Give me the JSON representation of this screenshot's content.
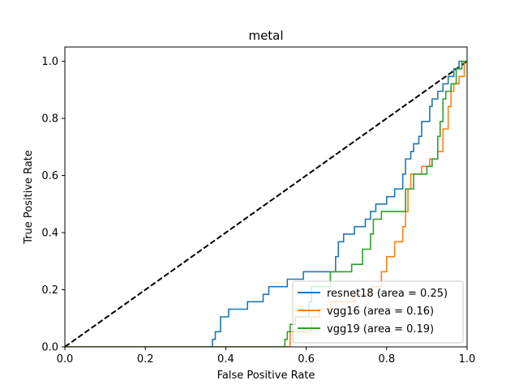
{
  "chart_data": {
    "type": "line",
    "title": "metal",
    "xlabel": "False Positive Rate",
    "ylabel": "True Positive Rate",
    "xlim": [
      0.0,
      1.0
    ],
    "ylim": [
      0.0,
      1.05
    ],
    "x_ticks": [
      "0.0",
      "0.2",
      "0.4",
      "0.6",
      "0.8",
      "1.0"
    ],
    "y_ticks": [
      "0.0",
      "0.2",
      "0.4",
      "0.6",
      "0.8",
      "1.0"
    ],
    "grid": false,
    "legend_position": "lower-right",
    "diagonal": {
      "x": [
        0,
        1
      ],
      "y": [
        0,
        1
      ],
      "style": "dashed",
      "color": "#000000"
    },
    "series": [
      {
        "name": "resnet18 (area = 0.25)",
        "color": "#1f77b4",
        "x": [
          0.0,
          0.367,
          0.367,
          0.374,
          0.374,
          0.387,
          0.387,
          0.407,
          0.407,
          0.454,
          0.454,
          0.493,
          0.493,
          0.507,
          0.507,
          0.553,
          0.553,
          0.593,
          0.593,
          0.613,
          0.613,
          0.673,
          0.673,
          0.68,
          0.68,
          0.693,
          0.693,
          0.72,
          0.72,
          0.747,
          0.747,
          0.76,
          0.76,
          0.773,
          0.773,
          0.8,
          0.8,
          0.82,
          0.82,
          0.84,
          0.84,
          0.847,
          0.847,
          0.86,
          0.86,
          0.867,
          0.867,
          0.88,
          0.88,
          0.887,
          0.887,
          0.907,
          0.907,
          0.913,
          0.913,
          0.927,
          0.927,
          0.94,
          0.94,
          0.953,
          0.953,
          0.967,
          0.967,
          0.98,
          0.98,
          0.993,
          0.993,
          1.0
        ],
        "y": [
          0.0,
          0.0,
          0.026,
          0.026,
          0.053,
          0.053,
          0.105,
          0.105,
          0.132,
          0.132,
          0.158,
          0.158,
          0.184,
          0.184,
          0.211,
          0.211,
          0.237,
          0.237,
          0.263,
          0.263,
          0.263,
          0.263,
          0.316,
          0.316,
          0.368,
          0.368,
          0.395,
          0.395,
          0.421,
          0.421,
          0.447,
          0.447,
          0.474,
          0.474,
          0.5,
          0.5,
          0.526,
          0.526,
          0.553,
          0.553,
          0.605,
          0.605,
          0.658,
          0.658,
          0.684,
          0.684,
          0.711,
          0.711,
          0.737,
          0.737,
          0.789,
          0.789,
          0.842,
          0.842,
          0.868,
          0.868,
          0.895,
          0.895,
          0.921,
          0.921,
          0.947,
          0.947,
          0.974,
          0.974,
          1.0,
          1.0,
          1.0,
          1.0
        ]
      },
      {
        "name": "vgg16 (area = 0.16)",
        "color": "#ff7f0e",
        "x": [
          0.0,
          0.56,
          0.56,
          0.613,
          0.613,
          0.633,
          0.633,
          0.66,
          0.66,
          0.72,
          0.72,
          0.76,
          0.76,
          0.787,
          0.787,
          0.8,
          0.8,
          0.82,
          0.82,
          0.84,
          0.84,
          0.847,
          0.847,
          0.853,
          0.853,
          0.86,
          0.86,
          0.887,
          0.887,
          0.907,
          0.907,
          0.927,
          0.927,
          0.94,
          0.94,
          0.953,
          0.953,
          0.96,
          0.96,
          0.967,
          0.967,
          0.98,
          0.98,
          0.993,
          0.993,
          1.0
        ],
        "y": [
          0.0,
          0.0,
          0.053,
          0.053,
          0.105,
          0.105,
          0.132,
          0.132,
          0.158,
          0.158,
          0.184,
          0.184,
          0.211,
          0.211,
          0.263,
          0.263,
          0.316,
          0.316,
          0.368,
          0.368,
          0.421,
          0.421,
          0.474,
          0.474,
          0.553,
          0.553,
          0.605,
          0.605,
          0.632,
          0.632,
          0.658,
          0.658,
          0.684,
          0.684,
          0.763,
          0.763,
          0.842,
          0.842,
          0.895,
          0.895,
          0.921,
          0.921,
          0.947,
          0.947,
          1.0,
          1.0
        ]
      },
      {
        "name": "vgg19 (area = 0.19)",
        "color": "#2ca02c",
        "x": [
          0.0,
          0.547,
          0.547,
          0.553,
          0.553,
          0.56,
          0.56,
          0.573,
          0.573,
          0.607,
          0.607,
          0.613,
          0.613,
          0.66,
          0.66,
          0.713,
          0.713,
          0.74,
          0.74,
          0.76,
          0.76,
          0.767,
          0.767,
          0.787,
          0.787,
          0.847,
          0.847,
          0.867,
          0.867,
          0.9,
          0.9,
          0.913,
          0.913,
          0.927,
          0.927,
          0.933,
          0.933,
          0.94,
          0.94,
          0.947,
          0.947,
          0.96,
          0.96,
          0.973,
          0.973,
          0.987,
          0.987,
          1.0
        ],
        "y": [
          0.0,
          0.0,
          0.026,
          0.026,
          0.053,
          0.053,
          0.079,
          0.079,
          0.105,
          0.105,
          0.158,
          0.158,
          0.211,
          0.211,
          0.263,
          0.263,
          0.289,
          0.289,
          0.342,
          0.342,
          0.395,
          0.395,
          0.447,
          0.447,
          0.474,
          0.474,
          0.553,
          0.553,
          0.605,
          0.605,
          0.632,
          0.632,
          0.658,
          0.658,
          0.737,
          0.737,
          0.789,
          0.789,
          0.868,
          0.868,
          0.895,
          0.895,
          0.921,
          0.921,
          0.974,
          0.974,
          1.0,
          1.0
        ]
      }
    ]
  }
}
